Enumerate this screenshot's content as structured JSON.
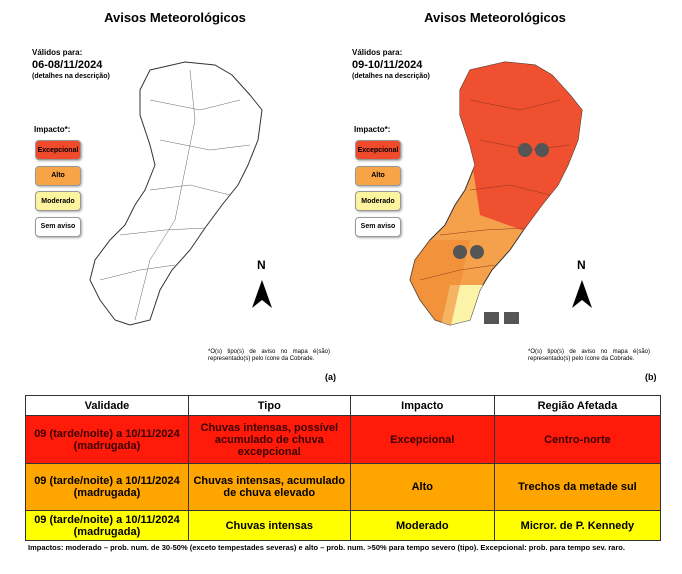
{
  "panels": [
    {
      "title": "Avisos Meteorológicos",
      "valid_label": "Válidos para:",
      "valid_dates": "06-08/11/2024",
      "details": "(detalhes na descrição)",
      "impact_label": "Impacto*:",
      "legend": [
        "Excepcional",
        "Alto",
        "Moderado",
        "Sem aviso"
      ],
      "north": "N",
      "footnote": "*O(s) tipo(s) de aviso no mapa é(são) representado(s) pelo ícone da Cobrade.",
      "tag": "(a)"
    },
    {
      "title": "Avisos Meteorológicos",
      "valid_label": "Válidos para:",
      "valid_dates": "09-10/11/2024",
      "details": "(detalhes na descrição)",
      "impact_label": "Impacto*:",
      "legend": [
        "Excepcional",
        "Alto",
        "Moderado",
        "Sem aviso"
      ],
      "north": "N",
      "footnote": "*O(s) tipo(s) de aviso no mapa é(são) representado(s) pelo ícone da Cobrade.",
      "tag": "(b)"
    }
  ],
  "table": {
    "header": [
      "Validade",
      "Tipo",
      "Impacto",
      "Região Afetada"
    ],
    "rows": [
      [
        "09 (tarde/noite) a 10/11/2024 (madrugada)",
        "Chuvas intensas, possível acumulado de chuva excepcional",
        "Excepcional",
        "Centro-norte"
      ],
      [
        "09 (tarde/noite) a 10/11/2024 (madrugada)",
        "Chuvas intensas, acumulado de chuva elevado",
        "Alto",
        "Trechos da metade sul"
      ],
      [
        "09 (tarde/noite) a 10/11/2024 (madrugada)",
        "Chuvas intensas",
        "Moderado",
        "Micror. de P. Kennedy"
      ]
    ],
    "footnote": "Impactos: moderado – prob. num. de 30-50% (exceto tempestades severas) e alto – prob. num. >50% para tempo severo (tipo). Excepcional: prob. para tempo sev. raro."
  }
}
